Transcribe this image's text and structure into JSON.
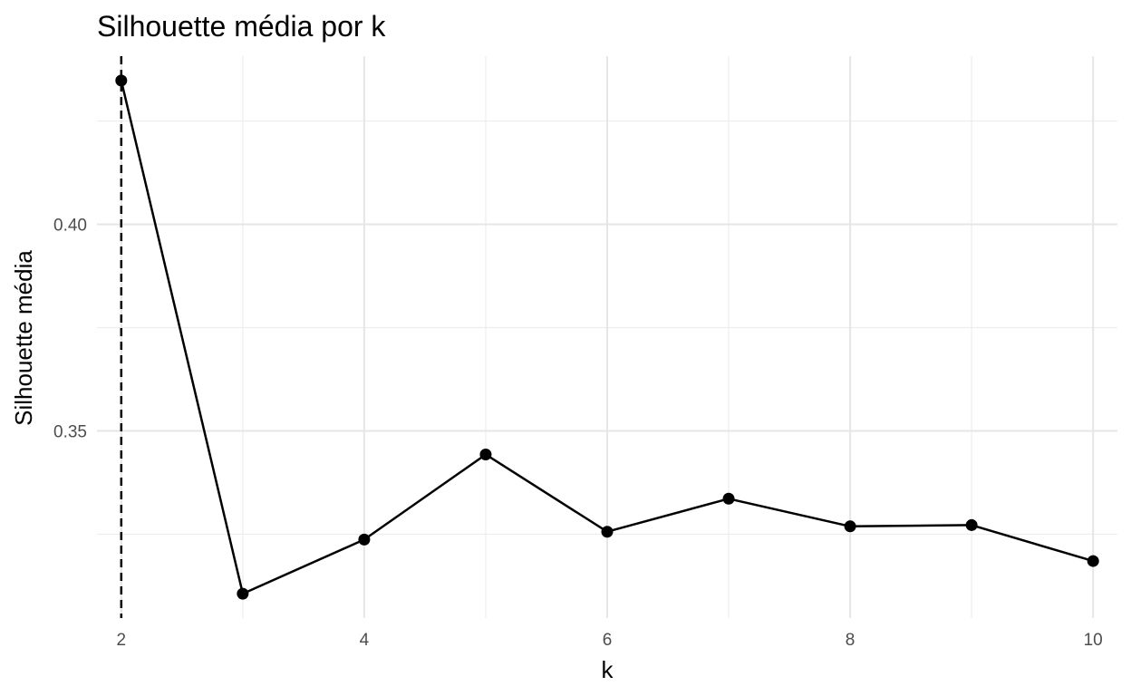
{
  "chart_data": {
    "type": "line",
    "title": "Silhouette média por k",
    "xlabel": "k",
    "ylabel": "Silhouette média",
    "x": [
      2,
      3,
      4,
      5,
      6,
      7,
      8,
      9,
      10
    ],
    "series": [
      {
        "values": [
          0.4348,
          0.3106,
          0.3237,
          0.3443,
          0.3256,
          0.3336,
          0.3269,
          0.3272,
          0.3185
        ]
      }
    ],
    "xlim": [
      1.8,
      10.2
    ],
    "ylim": [
      0.3047,
      0.4407
    ],
    "x_ticks": [
      2,
      4,
      6,
      8,
      10
    ],
    "x_tick_labels": [
      "2",
      "4",
      "6",
      "8",
      "10"
    ],
    "y_ticks": [
      0.35,
      0.4
    ],
    "y_tick_labels": [
      "0.35",
      "0.40"
    ],
    "reference_line": {
      "orientation": "vertical",
      "x": 2,
      "style": "dashed"
    },
    "grid": true,
    "legend": "none",
    "colors": {
      "line": "#000000",
      "points": "#000000",
      "grid": "#e6e6e6",
      "tick_text": "#4d4d4d"
    }
  }
}
